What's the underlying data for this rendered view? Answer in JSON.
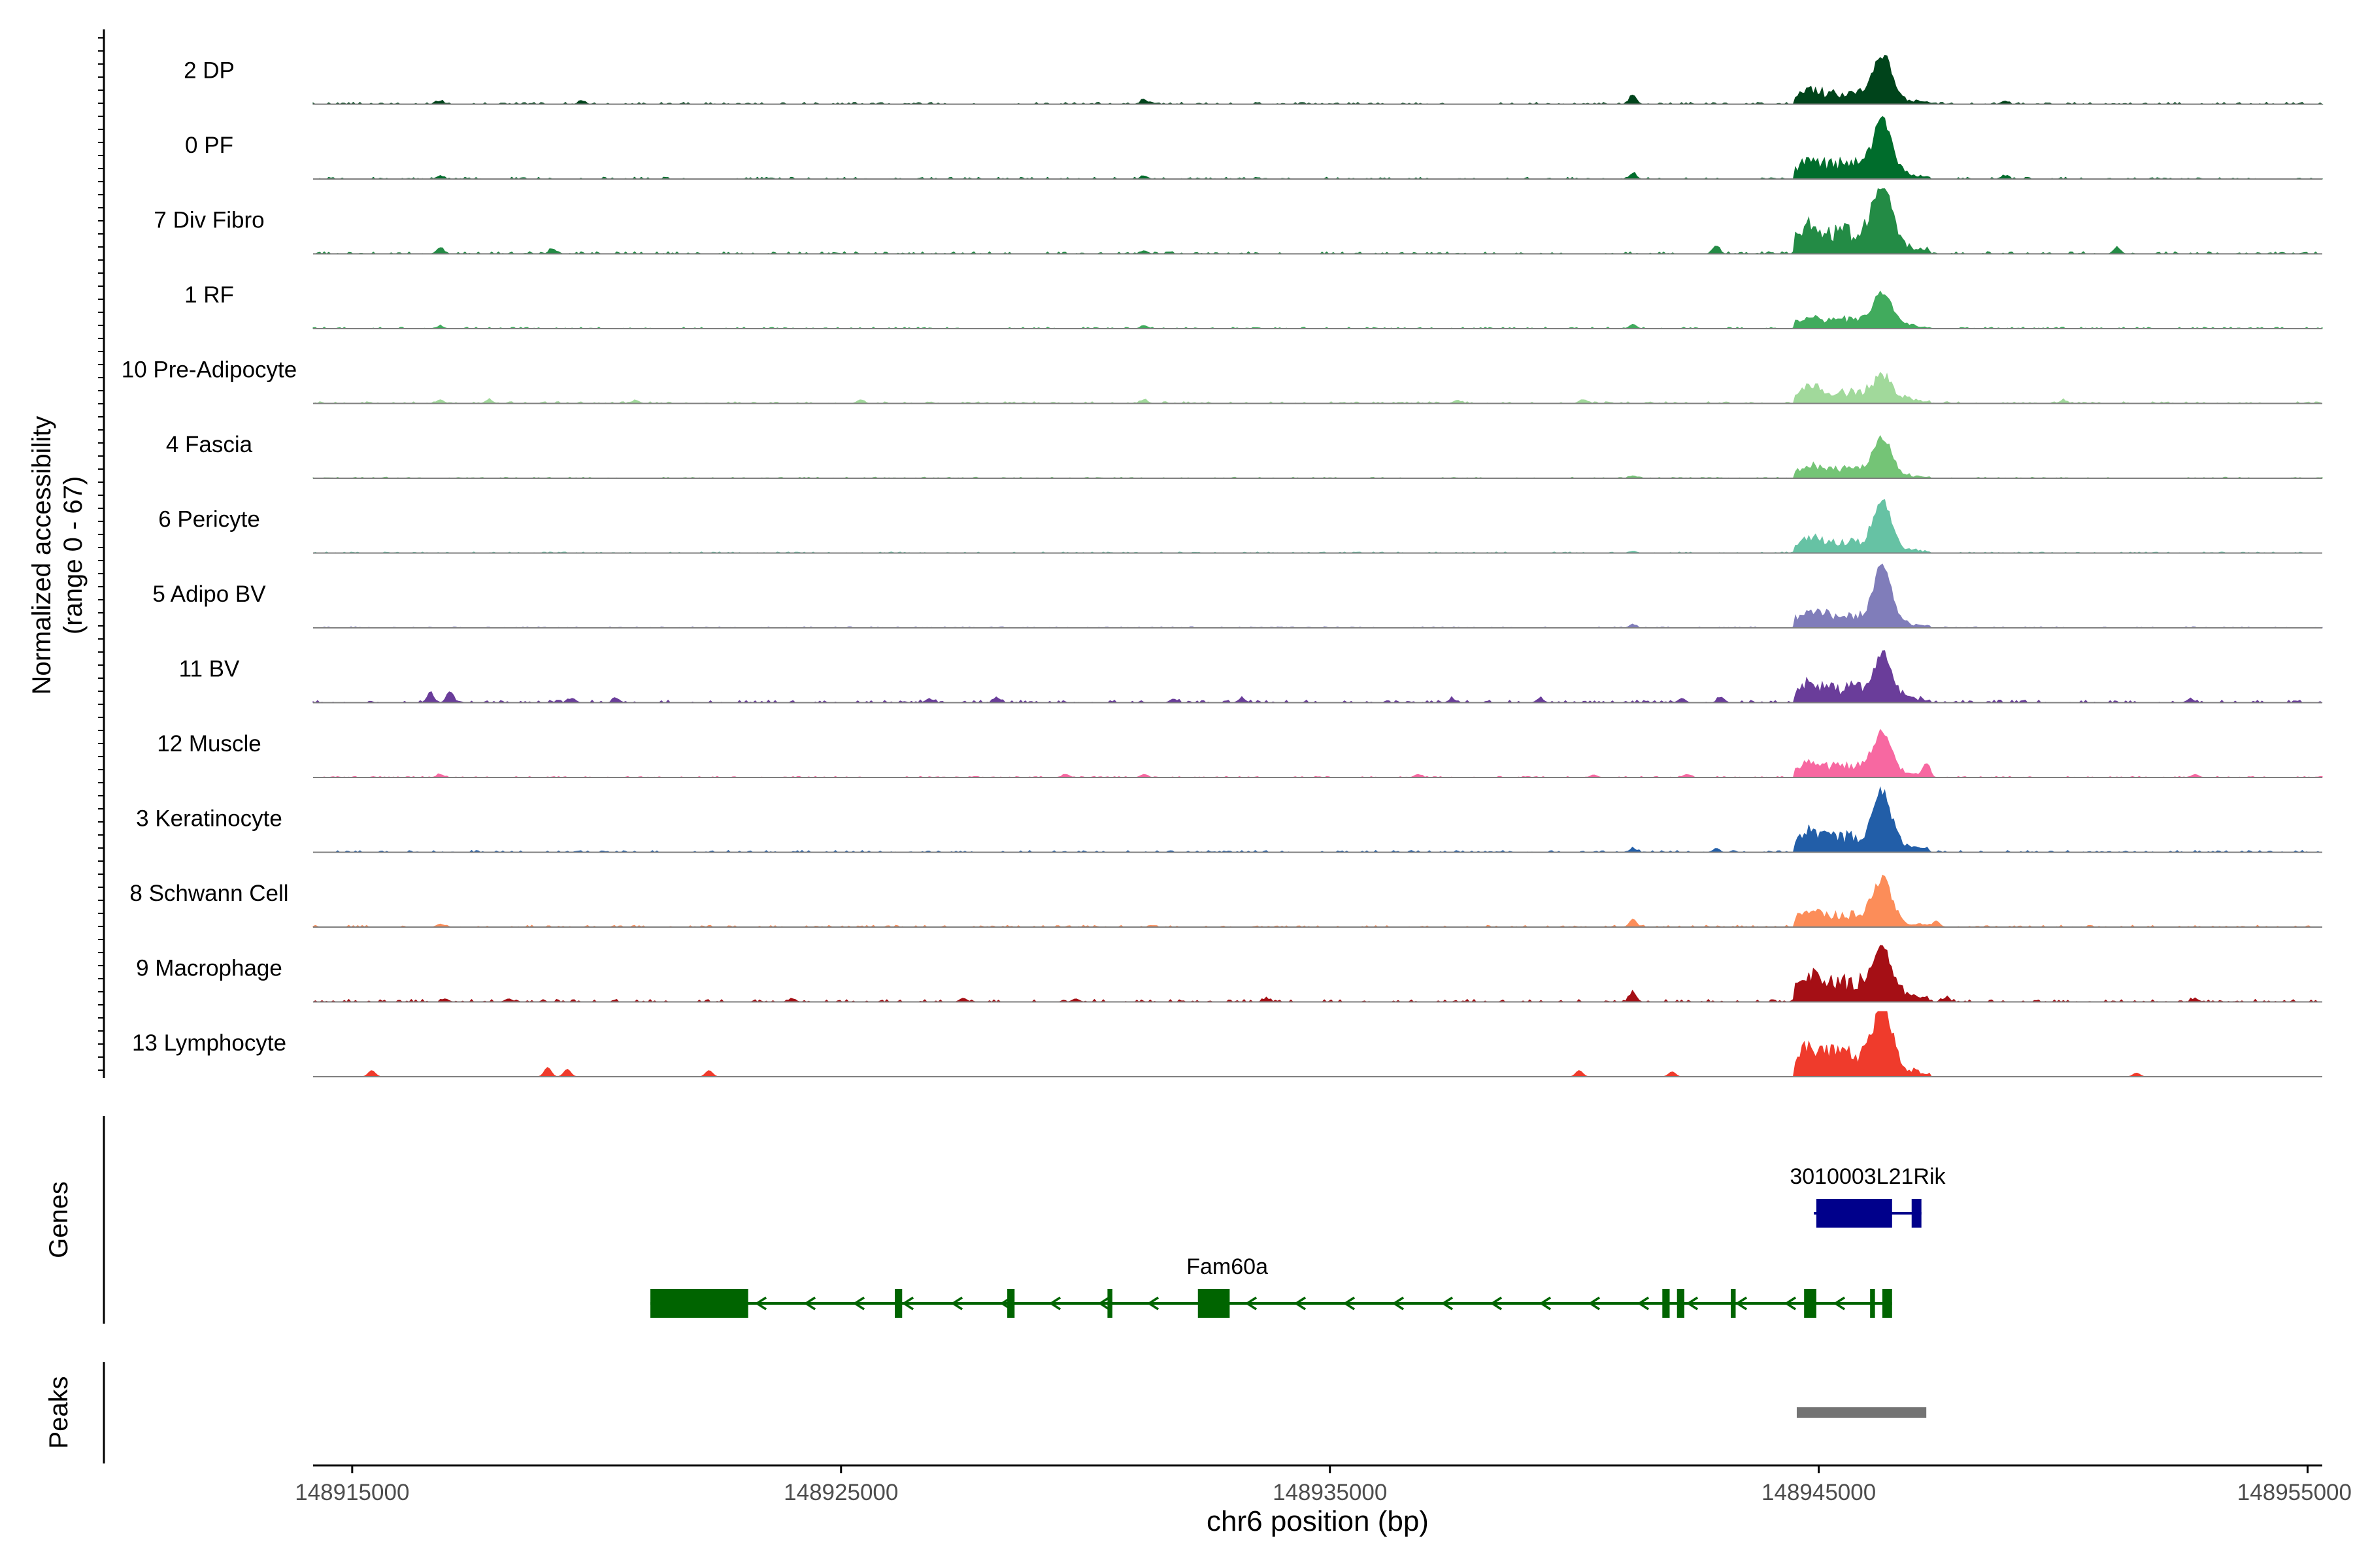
{
  "chart_data": {
    "type": "area",
    "y_axis_title_line1": "Normalized accessibility",
    "y_axis_title_line2": "(range 0 - 67)",
    "x_axis_title": "chr6 position (bp)",
    "xlim": [
      148914200,
      148955300
    ],
    "x_ticks": [
      148915000,
      148925000,
      148935000,
      148945000,
      148955000
    ],
    "x_tick_labels": [
      "148915000",
      "148925000",
      "148935000",
      "148945000",
      "148955000"
    ],
    "genes_label": "Genes",
    "peaks_label": "Peaks",
    "tracks": [
      {
        "name": "2 DP",
        "color": "#00441b",
        "peak": 0.75,
        "broad": 0.25,
        "noise": 0.05,
        "spikes": [
          [
            148916800,
            0.05
          ],
          [
            148919700,
            0.05
          ],
          [
            148931200,
            0.07
          ],
          [
            148941200,
            0.15
          ],
          [
            148948800,
            0.05
          ]
        ]
      },
      {
        "name": "0 PF",
        "color": "#006d2c",
        "peak": 0.85,
        "broad": 0.35,
        "noise": 0.05,
        "spikes": [
          [
            148916800,
            0.05
          ],
          [
            148931200,
            0.05
          ],
          [
            148941200,
            0.09
          ],
          [
            148948800,
            0.05
          ]
        ]
      },
      {
        "name": "7 Div Fibro",
        "color": "#238b45",
        "peak": 1.0,
        "broad": 0.5,
        "noise": 0.06,
        "spikes": [
          [
            148916800,
            0.1
          ],
          [
            148919100,
            0.08
          ],
          [
            148931200,
            0.05
          ],
          [
            148942900,
            0.13
          ],
          [
            148951100,
            0.1
          ]
        ]
      },
      {
        "name": "1 RF",
        "color": "#41ab5d",
        "peak": 0.55,
        "broad": 0.2,
        "noise": 0.04,
        "spikes": [
          [
            148916800,
            0.04
          ],
          [
            148931200,
            0.05
          ],
          [
            148941200,
            0.07
          ]
        ]
      },
      {
        "name": "10 Pre-Adipocyte",
        "color": "#a1d99b",
        "peak": 0.35,
        "broad": 0.28,
        "noise": 0.05,
        "spikes": [
          [
            148916800,
            0.06
          ],
          [
            148917800,
            0.06
          ],
          [
            148920800,
            0.05
          ],
          [
            148925400,
            0.06
          ],
          [
            148931200,
            0.06
          ],
          [
            148937600,
            0.05
          ],
          [
            148940200,
            0.06
          ],
          [
            148950000,
            0.05
          ]
        ]
      },
      {
        "name": "4 Fascia",
        "color": "#74c476",
        "peak": 0.6,
        "broad": 0.2,
        "noise": 0.03,
        "spikes": [
          [
            148941200,
            0.04
          ]
        ]
      },
      {
        "name": "6 Pericyte",
        "color": "#66c2a4",
        "peak": 0.75,
        "broad": 0.25,
        "noise": 0.03,
        "spikes": [
          [
            148941200,
            0.03
          ]
        ]
      },
      {
        "name": "5 Adipo BV",
        "color": "#807dba",
        "peak": 0.9,
        "broad": 0.3,
        "noise": 0.03,
        "spikes": [
          [
            148941200,
            0.05
          ]
        ]
      },
      {
        "name": "11 BV",
        "color": "#6a3d9a",
        "peak": 0.65,
        "broad": 0.35,
        "noise": 0.07,
        "spikes": [
          [
            148916600,
            0.15
          ],
          [
            148917000,
            0.18
          ],
          [
            148919500,
            0.07
          ],
          [
            148920400,
            0.07
          ],
          [
            148926800,
            0.06
          ],
          [
            148928200,
            0.07
          ],
          [
            148931800,
            0.06
          ],
          [
            148933200,
            0.07
          ],
          [
            148937500,
            0.06
          ],
          [
            148939300,
            0.07
          ],
          [
            148942200,
            0.07
          ],
          [
            148943000,
            0.09
          ],
          [
            148952600,
            0.06
          ]
        ]
      },
      {
        "name": "12 Muscle",
        "color": "#f768a1",
        "peak": 0.65,
        "broad": 0.25,
        "noise": 0.03,
        "spikes": [
          [
            148916800,
            0.05
          ],
          [
            148929600,
            0.05
          ],
          [
            148931200,
            0.05
          ],
          [
            148936800,
            0.05
          ],
          [
            148940400,
            0.04
          ],
          [
            148942300,
            0.05
          ],
          [
            148947200,
            0.2
          ],
          [
            148952700,
            0.05
          ]
        ]
      },
      {
        "name": "3 Keratinocyte",
        "color": "#225ea8",
        "peak": 0.9,
        "broad": 0.35,
        "noise": 0.05,
        "spikes": [
          [
            148941200,
            0.06
          ],
          [
            148942900,
            0.05
          ]
        ]
      },
      {
        "name": "8 Schwann Cell",
        "color": "#fc8d59",
        "peak": 0.7,
        "broad": 0.3,
        "noise": 0.05,
        "spikes": [
          [
            148916800,
            0.05
          ],
          [
            148941200,
            0.13
          ],
          [
            148947400,
            0.1
          ]
        ]
      },
      {
        "name": "9 Macrophage",
        "color": "#a50f15",
        "peak": 0.75,
        "broad": 0.45,
        "noise": 0.07,
        "spikes": [
          [
            148916900,
            0.05
          ],
          [
            148918200,
            0.05
          ],
          [
            148924000,
            0.05
          ],
          [
            148927500,
            0.06
          ],
          [
            148929800,
            0.05
          ],
          [
            148933700,
            0.05
          ],
          [
            148941200,
            0.15
          ],
          [
            148947600,
            0.06
          ],
          [
            148952700,
            0.05
          ]
        ]
      },
      {
        "name": "13 Lymphocyte",
        "color": "#ef3b2c",
        "peak": 0.95,
        "broad": 0.55,
        "noise": 0.0,
        "spikes": [
          [
            148915400,
            0.1
          ],
          [
            148919000,
            0.15
          ],
          [
            148919400,
            0.12
          ],
          [
            148922300,
            0.1
          ],
          [
            148940100,
            0.1
          ],
          [
            148942000,
            0.08
          ],
          [
            148946500,
            0.1
          ],
          [
            148951500,
            0.06
          ]
        ]
      }
    ],
    "genes": [
      {
        "name": "3010003L21Rik",
        "strand": "+",
        "color": "#00008b",
        "start": 148944900,
        "end": 148947100,
        "exons": [
          [
            148944950,
            148946500
          ],
          [
            148946900,
            148947100
          ]
        ],
        "label_x": 148946000
      },
      {
        "name": "Fam60a",
        "strand": "-",
        "color": "#006400",
        "start": 148921100,
        "end": 148946500,
        "exons": [
          [
            148921100,
            148923100
          ],
          [
            148926100,
            148926250
          ],
          [
            148928400,
            148928550
          ],
          [
            148930450,
            148930550
          ],
          [
            148932300,
            148932950
          ],
          [
            148941800,
            148941950
          ],
          [
            148942100,
            148942250
          ],
          [
            148943200,
            148943300
          ],
          [
            148944700,
            148944950
          ],
          [
            148946050,
            148946150
          ],
          [
            148946300,
            148946500
          ]
        ],
        "label_x": 148932900
      }
    ],
    "peaks": [
      [
        148944550,
        148947200
      ]
    ],
    "peak_color": "#737373"
  }
}
